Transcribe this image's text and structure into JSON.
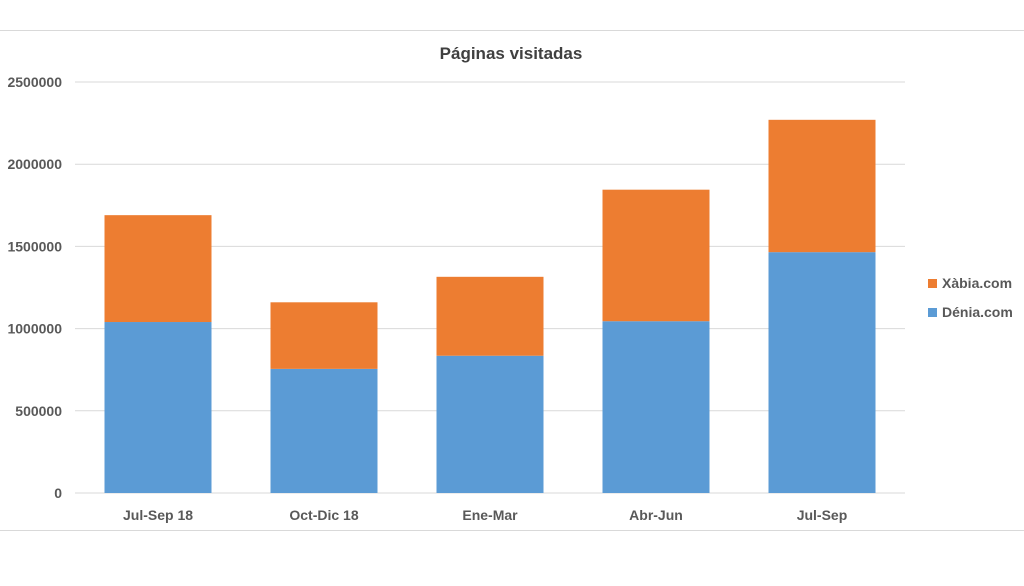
{
  "chart_data": {
    "type": "bar",
    "stacked": true,
    "title": "Páginas visitadas",
    "xlabel": "",
    "ylabel": "",
    "categories": [
      "Jul-Sep 18",
      "Oct-Dic 18",
      "Ene-Mar",
      "Abr-Jun",
      "Jul-Sep"
    ],
    "ylim": [
      0,
      2500000
    ],
    "yticks": [
      "0",
      "500000",
      "1000000",
      "1500000",
      "2000000",
      "2500000"
    ],
    "grid": true,
    "legend_position": "right",
    "series": [
      {
        "name": "Dénia.com",
        "color": "#5b9bd5",
        "values": [
          1040000,
          755000,
          835000,
          1045000,
          1465000
        ]
      },
      {
        "name": "Xàbia.com",
        "color": "#ed7d31",
        "values": [
          650000,
          405000,
          480000,
          800000,
          805000
        ]
      }
    ]
  }
}
